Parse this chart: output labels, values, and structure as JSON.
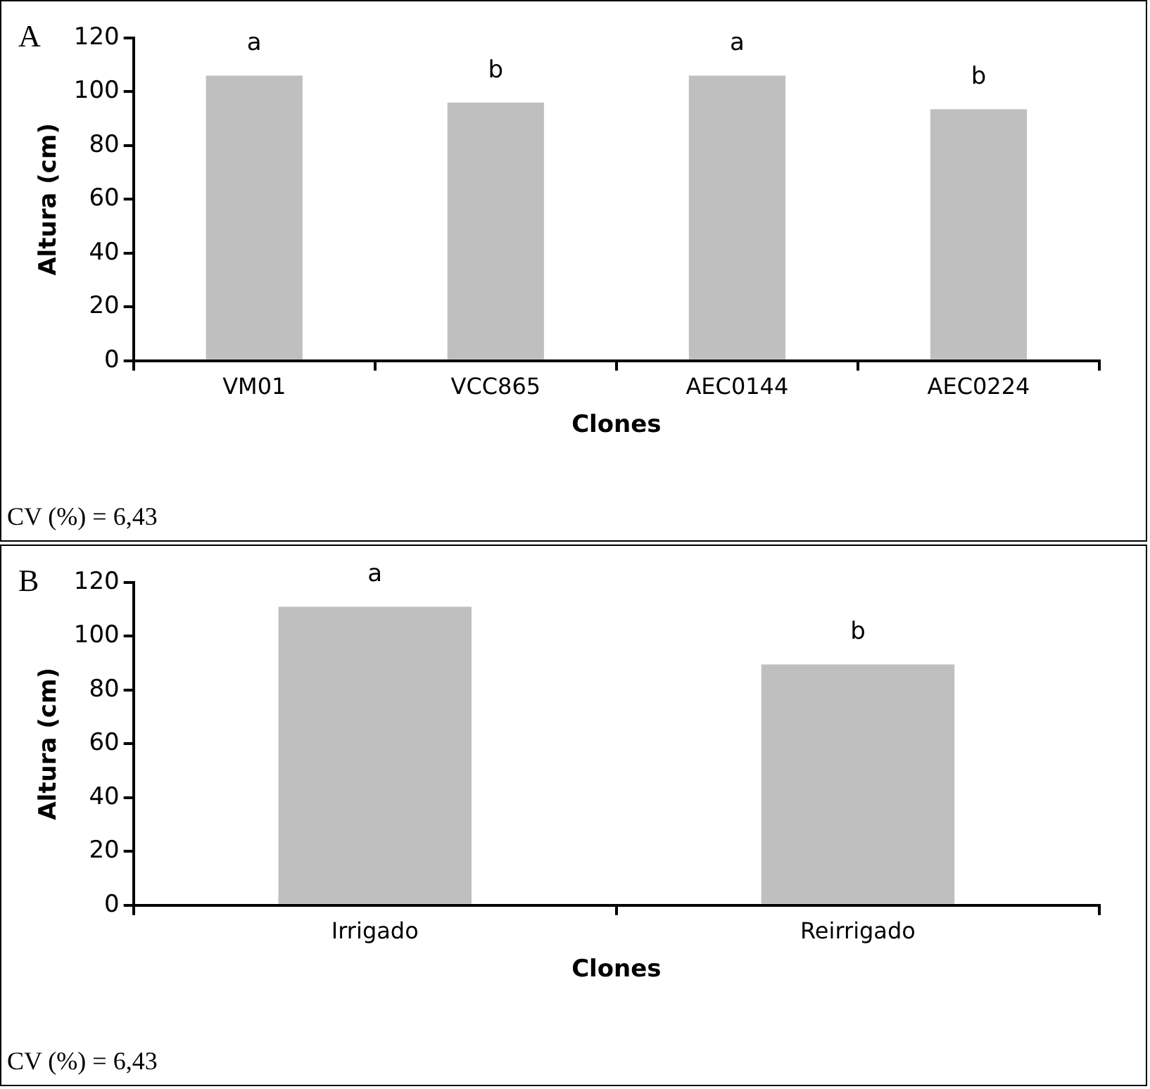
{
  "chart_data": [
    {
      "type": "bar",
      "title": "A",
      "xlabel": "Clones",
      "ylabel": "Altura (cm)",
      "categories": [
        "VM01",
        "VCC865",
        "AEC0144",
        "AEC0224"
      ],
      "values": [
        106,
        96,
        106,
        93.5
      ],
      "color": "#bfbfbf",
      "ylim": [
        0,
        120
      ],
      "yticks": [
        0,
        20,
        40,
        60,
        80,
        100,
        120
      ],
      "grid": false,
      "legend": false,
      "annotations": [
        {
          "text": "a",
          "x": "VM01",
          "y": 106
        },
        {
          "text": "b",
          "x": "VCC865",
          "y": 96
        },
        {
          "text": "a",
          "x": "AEC0144",
          "y": 106
        },
        {
          "text": "b",
          "x": "AEC0224",
          "y": 93.5
        },
        "CV (%) = 6,43"
      ]
    },
    {
      "type": "bar",
      "title": "B",
      "xlabel": "Clones",
      "ylabel": "Altura (cm)",
      "categories": [
        "Irrigado",
        "Reirrigado"
      ],
      "values": [
        111,
        89.5
      ],
      "color": "#bfbfbf",
      "ylim": [
        0,
        120
      ],
      "yticks": [
        0,
        20,
        40,
        60,
        80,
        100,
        120
      ],
      "grid": false,
      "legend": false,
      "annotations": [
        {
          "text": "a",
          "x": "Irrigado",
          "y": 111
        },
        {
          "text": "b",
          "x": "Reirrigado",
          "y": 89.5
        },
        "CV (%) = 6,43"
      ]
    }
  ]
}
